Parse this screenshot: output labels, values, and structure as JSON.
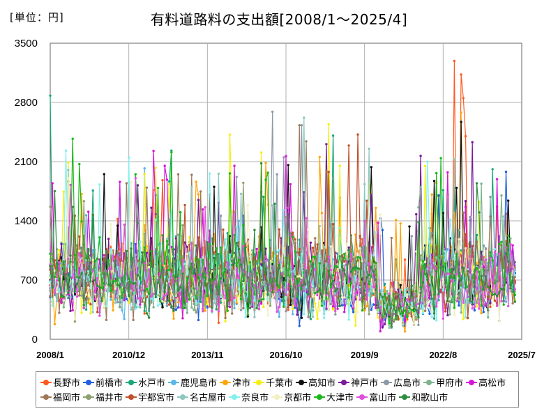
{
  "unit_label": "[単位：円]",
  "title": "有料道路料の支出額[2008/1～2025/4]",
  "chart_data": {
    "type": "line",
    "title": "有料道路料の支出額[2008/1～2025/4]",
    "ylabel": "",
    "xlabel": "",
    "ylim": [
      0,
      3500
    ],
    "yticks": [
      "0",
      "700",
      "1400",
      "2100",
      "2800",
      "3500"
    ],
    "xlim": [
      "2008/1",
      "2025/7"
    ],
    "xticks": [
      "2008/1",
      "2010/12",
      "2013/11",
      "2016/10",
      "2019/9",
      "2022/8",
      "2025/7"
    ],
    "grid": true,
    "legend_position": "bottom",
    "start_period": "2008/1",
    "end_period": "2025/4",
    "series": [
      {
        "name": "長野市",
        "color": "#ff5a1f",
        "mean": 760,
        "seed": 1,
        "peaks": [
          [
            "2023/1",
            3290
          ],
          [
            "2023/4",
            3130
          ],
          [
            "2023/5",
            2850
          ],
          [
            "2023/6",
            2400
          ]
        ]
      },
      {
        "name": "前橋市",
        "color": "#1f5fe0",
        "mean": 640,
        "seed": 2,
        "peaks": [
          [
            "2024/12",
            1980
          ]
        ]
      },
      {
        "name": "水戸市",
        "color": "#18a878",
        "mean": 760,
        "seed": 3,
        "peaks": [
          [
            "2008/1",
            2880
          ],
          [
            "2012/7",
            2230
          ],
          [
            "2024/6",
            2010
          ]
        ]
      },
      {
        "name": "鹿児島市",
        "color": "#5ab8e8",
        "mean": 700,
        "seed": 4,
        "peaks": [
          [
            "2011/7",
            2020
          ]
        ]
      },
      {
        "name": "津市",
        "color": "#ffa50a",
        "mean": 760,
        "seed": 5,
        "peaks": [
          [
            "2023/4",
            2680
          ],
          [
            "2022/5",
            1850
          ]
        ]
      },
      {
        "name": "千葉市",
        "color": "#f5ef12",
        "mean": 700,
        "seed": 6,
        "peaks": [
          [
            "2018/5",
            2540
          ],
          [
            "2014/9",
            2420
          ]
        ]
      },
      {
        "name": "高知市",
        "color": "#111111",
        "mean": 700,
        "seed": 7,
        "peaks": [
          [
            "2016/11",
            2060
          ],
          [
            "2023/4",
            2570
          ],
          [
            "2023/2",
            1790
          ]
        ]
      },
      {
        "name": "神戸市",
        "color": "#7a1a9a",
        "mean": 740,
        "seed": 8,
        "peaks": [
          [
            "2023/9",
            2330
          ],
          [
            "2011/4",
            1820
          ]
        ]
      },
      {
        "name": "広島市",
        "color": "#8c99a6",
        "mean": 700,
        "seed": 9,
        "peaks": [
          [
            "2016/4",
            2690
          ],
          [
            "2017/5",
            2530
          ],
          [
            "2016/9",
            2150
          ]
        ]
      },
      {
        "name": "甲府市",
        "color": "#7fb38c",
        "mean": 720,
        "seed": 10,
        "peaks": [
          [
            "2018/7",
            1900
          ],
          [
            "2021/9",
            1560
          ]
        ]
      },
      {
        "name": "高松市",
        "color": "#d515d8",
        "mean": 700,
        "seed": 11,
        "peaks": [
          [
            "2010/8",
            1860
          ],
          [
            "2012/4",
            2050
          ]
        ]
      },
      {
        "name": "福岡市",
        "color": "#a0785a",
        "mean": 760,
        "seed": 12,
        "peaks": [
          [
            "2017/4",
            2530
          ],
          [
            "2017/7",
            2340
          ],
          [
            "2012/10",
            1950
          ]
        ]
      },
      {
        "name": "福井市",
        "color": "#8ea06e",
        "mean": 700,
        "seed": 13,
        "peaks": [
          [
            "2015/3",
            1850
          ]
        ]
      },
      {
        "name": "宇都宮市",
        "color": "#c0502c",
        "mean": 760,
        "seed": 14,
        "peaks": [
          [
            "2019/6",
            2420
          ],
          [
            "2019/2",
            2290
          ]
        ]
      },
      {
        "name": "名古屋市",
        "color": "#8cc8c0",
        "mean": 740,
        "seed": 15,
        "peaks": [
          [
            "2017/6",
            2620
          ],
          [
            "2008/9",
            2000
          ]
        ]
      },
      {
        "name": "奈良市",
        "color": "#82f0ee",
        "mean": 720,
        "seed": 16,
        "peaks": [
          [
            "2008/8",
            2230
          ],
          [
            "2009/11",
            1830
          ]
        ]
      },
      {
        "name": "京都市",
        "color": "#f2f0c0",
        "mean": 680,
        "seed": 17,
        "peaks": []
      },
      {
        "name": "大津市",
        "color": "#1ab81a",
        "mean": 740,
        "seed": 18,
        "peaks": [
          [
            "2008/11",
            2370
          ],
          [
            "2009/2",
            2070
          ],
          [
            "2012/7",
            2210
          ]
        ]
      },
      {
        "name": "富山市",
        "color": "#e050e0",
        "mean": 680,
        "seed": 19,
        "peaks": [
          [
            "2013/10",
            1560
          ]
        ]
      },
      {
        "name": "和歌山市",
        "color": "#2e8c3c",
        "mean": 700,
        "seed": 20,
        "peaks": [
          [
            "2015/11",
            2080
          ]
        ]
      }
    ]
  }
}
